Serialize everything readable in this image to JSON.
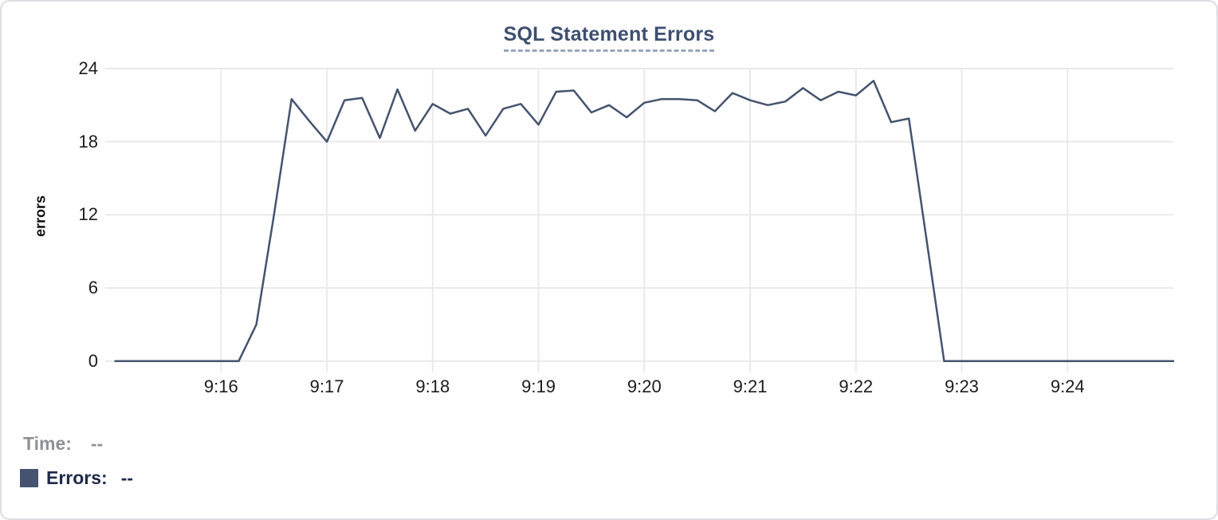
{
  "chart_data": {
    "type": "line",
    "title": "SQL Statement Errors",
    "ylabel": "errors",
    "ylim": [
      0,
      24
    ],
    "y_ticks": [
      24,
      18,
      12,
      6,
      0
    ],
    "x_ticks": [
      "9:16",
      "9:17",
      "9:18",
      "9:19",
      "9:20",
      "9:21",
      "9:22",
      "9:23",
      "9:24"
    ],
    "x_range": [
      "9:15:00",
      "9:25:00"
    ],
    "grid": true,
    "legend_position": "bottom-left",
    "series": [
      {
        "name": "Errors",
        "color": "#45536e",
        "x": [
          "9:15:00",
          "9:15:10",
          "9:15:20",
          "9:15:30",
          "9:15:40",
          "9:15:50",
          "9:16:00",
          "9:16:10",
          "9:16:20",
          "9:16:30",
          "9:16:40",
          "9:16:50",
          "9:17:00",
          "9:17:10",
          "9:17:20",
          "9:17:30",
          "9:17:40",
          "9:17:50",
          "9:18:00",
          "9:18:10",
          "9:18:20",
          "9:18:30",
          "9:18:40",
          "9:18:50",
          "9:19:00",
          "9:19:10",
          "9:19:20",
          "9:19:30",
          "9:19:40",
          "9:19:50",
          "9:20:00",
          "9:20:10",
          "9:20:20",
          "9:20:30",
          "9:20:40",
          "9:20:50",
          "9:21:00",
          "9:21:10",
          "9:21:20",
          "9:21:30",
          "9:21:40",
          "9:21:50",
          "9:22:00",
          "9:22:10",
          "9:22:20",
          "9:22:30",
          "9:22:40",
          "9:22:50",
          "9:23:00",
          "9:23:10",
          "9:23:20",
          "9:23:30",
          "9:23:40",
          "9:23:50",
          "9:24:00",
          "9:24:10",
          "9:24:20",
          "9:24:30",
          "9:24:40",
          "9:24:50",
          "9:25:00"
        ],
        "values": [
          0,
          0,
          0,
          0,
          0,
          0,
          0,
          0,
          3,
          12,
          21.5,
          19.7,
          18,
          21.4,
          21.6,
          18.3,
          22.3,
          18.9,
          21.1,
          20.3,
          20.7,
          18.5,
          20.7,
          21.1,
          19.4,
          22.1,
          22.2,
          20.4,
          21,
          20,
          21.2,
          21.5,
          21.5,
          21.4,
          20.5,
          22,
          21.4,
          21,
          21.3,
          22.4,
          21.4,
          22.1,
          21.8,
          23,
          19.6,
          19.9,
          10,
          0,
          0,
          0,
          0,
          0,
          0,
          0,
          0,
          0,
          0,
          0,
          0,
          0,
          0
        ]
      }
    ]
  },
  "hover_readout": {
    "time_label": "Time:",
    "time_value": "--",
    "errors_label": "Errors:",
    "errors_value": "--"
  },
  "colors": {
    "title": "#3e4f6f",
    "title_underline": "#9aa5ba",
    "series_line": "#45536e",
    "grid": "#e9eaec",
    "tick_text": "#1b1c1e",
    "readout_muted": "#8e9196",
    "readout_strong": "#1e2949",
    "card_border": "#dcdee3"
  }
}
